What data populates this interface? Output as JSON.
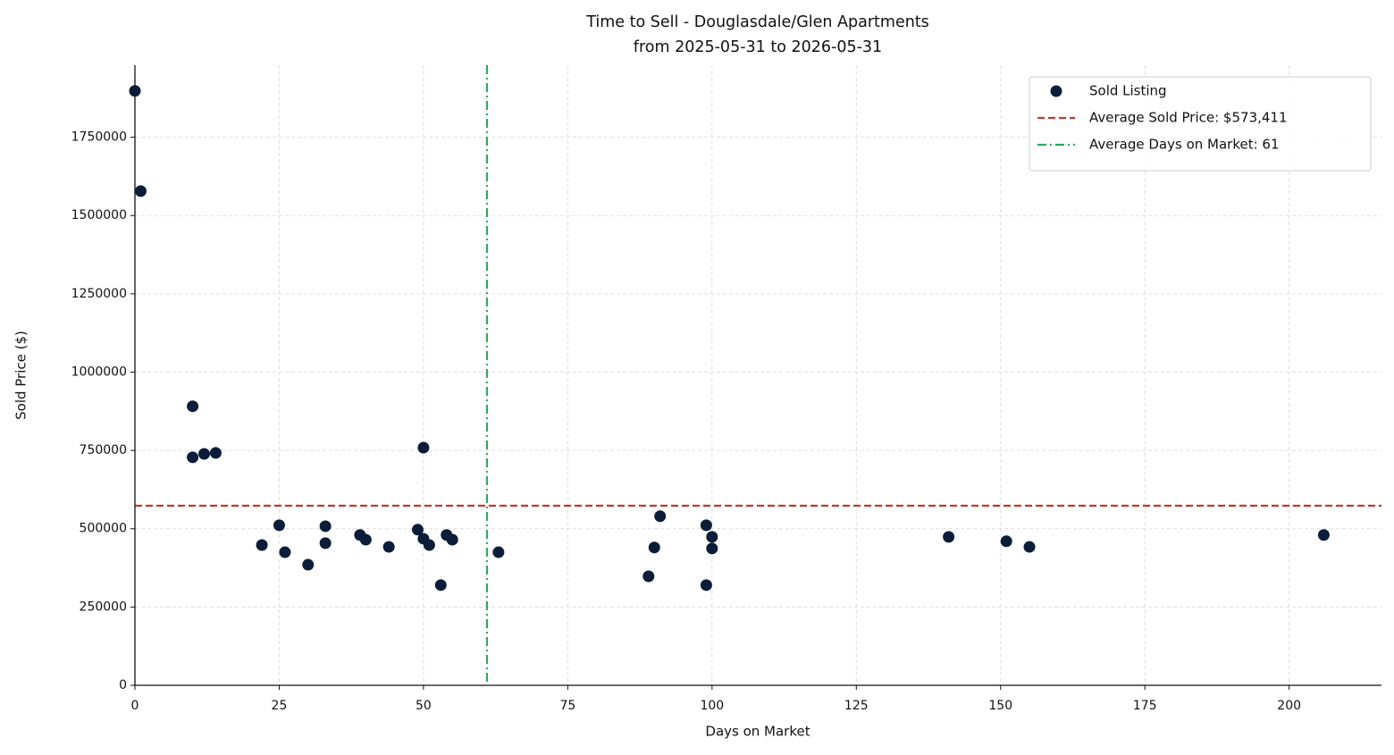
{
  "chart_data": {
    "type": "scatter",
    "title": "Time to Sell - Douglasdale/Glen Apartments",
    "subtitle": "from 2025-05-31 to 2026-05-31",
    "x_label": "Days on Market",
    "y_label": "Sold Price ($)",
    "x": [
      0,
      1,
      10,
      10,
      12,
      14,
      22,
      25,
      26,
      30,
      33,
      33,
      39,
      40,
      44,
      49,
      50,
      50,
      51,
      53,
      54,
      55,
      63,
      89,
      90,
      91,
      99,
      99,
      100,
      100,
      141,
      151,
      155,
      206
    ],
    "series": [
      {
        "name": "Sold Listing",
        "color": "#0b1d38",
        "values": [
          1898000,
          1578000,
          891000,
          728000,
          739000,
          742000,
          448000,
          511000,
          425000,
          385000,
          508000,
          454000,
          480000,
          465000,
          442000,
          497000,
          759000,
          468000,
          448000,
          320000,
          480000,
          465000,
          425000,
          348000,
          440000,
          540000,
          511000,
          320000,
          474000,
          437000,
          474000,
          460000,
          442000,
          480000
        ]
      }
    ],
    "hlines": [
      {
        "name": "Average Sold Price: $573,411",
        "value": 573411,
        "color": "#c0392b",
        "style": "dashed"
      }
    ],
    "vlines": [
      {
        "name": "Average Days on Market: 61",
        "value": 61,
        "color": "#27ae60",
        "style": "dashdot"
      }
    ],
    "xlim": [
      0,
      216
    ],
    "ylim": [
      0,
      1980000
    ],
    "xticks": [
      0,
      25,
      50,
      75,
      100,
      125,
      150,
      175,
      200
    ],
    "yticks": [
      0,
      250000,
      500000,
      750000,
      1000000,
      1250000,
      1500000,
      1750000
    ],
    "grid": true,
    "legend": "upper right"
  }
}
